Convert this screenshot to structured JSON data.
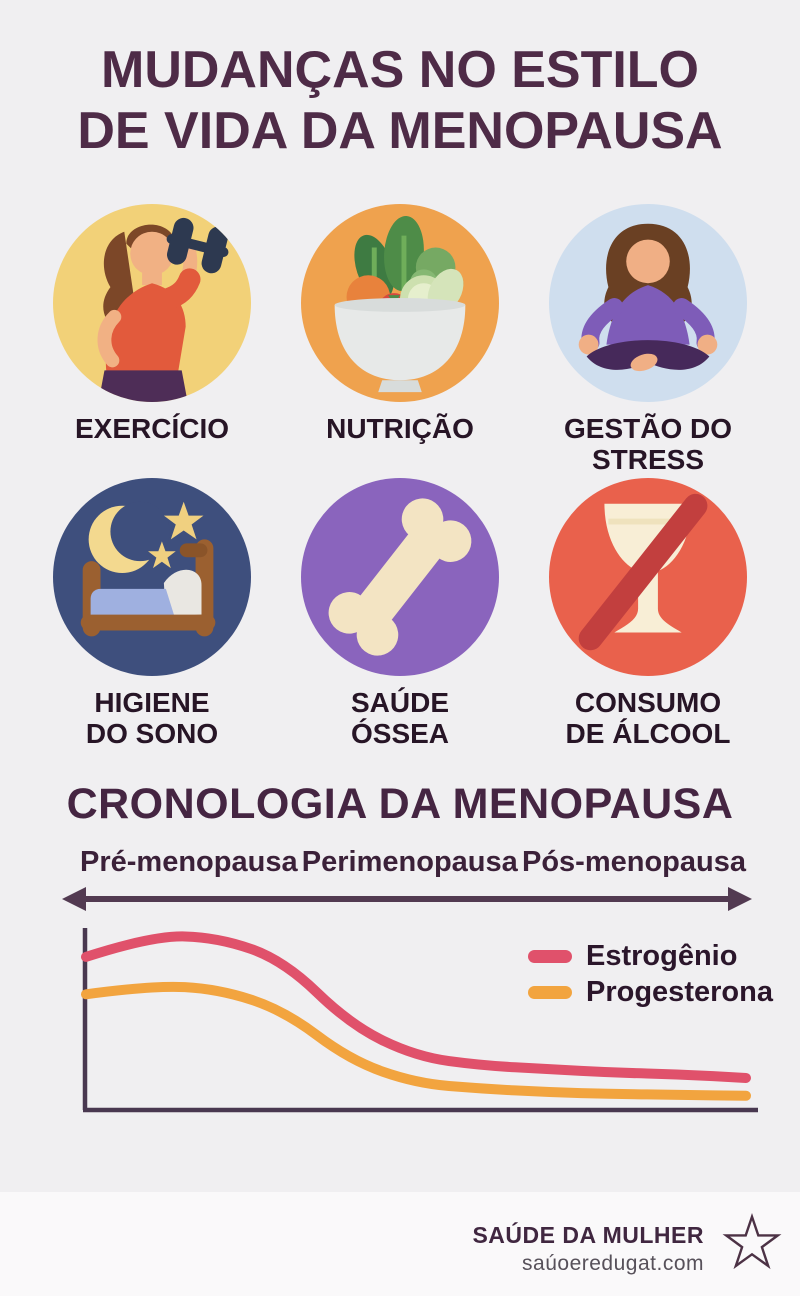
{
  "page": {
    "background": "#f0eff1",
    "footer_background": "#faf9fa"
  },
  "title": {
    "text": "MUDANÇAS NO ESTILO\nDE VIDA DA MENOPAUSA",
    "color": "#4e2b47"
  },
  "lifestyle_items": [
    {
      "label": "EXERCÍCIO",
      "icon": "exercise-dumbbell-icon",
      "circle_color": "#f2d178"
    },
    {
      "label": "NUTRIÇÃO",
      "icon": "salad-bowl-icon",
      "circle_color": "#efa24e"
    },
    {
      "label": "GESTÃO DO\nSTRESS",
      "icon": "meditation-icon",
      "circle_color": "#cfdeee"
    },
    {
      "label": "HIGIENE\nDO SONO",
      "icon": "sleep-bed-icon",
      "circle_color": "#3e4f7d"
    },
    {
      "label": "SAÚDE\nÓSSEA",
      "icon": "bone-icon",
      "circle_color": "#8a64bd"
    },
    {
      "label": "CONSUMO\nDE ÁLCOOL",
      "icon": "no-alcohol-icon",
      "circle_color": "#e9614c"
    }
  ],
  "timeline": {
    "heading": "CRONOLOGIA DA MENOPAUSA",
    "stages": [
      "Pré-menopausa",
      "Perimenopausa",
      "Pós-menopausa"
    ],
    "arrow_color": "#523a51"
  },
  "chart_data": {
    "type": "line",
    "title": "CRONOLOGIA DA MENOPAUSA",
    "x_stages": [
      "Pré-menopausa",
      "Perimenopausa",
      "Pós-menopausa"
    ],
    "x_percent": [
      0,
      10,
      20,
      30,
      40,
      50,
      60,
      70,
      80,
      90,
      100
    ],
    "series": [
      {
        "name": "Estrogênio",
        "color": "#e0516b",
        "values": [
          86,
          98,
          97,
          84,
          48,
          30,
          25,
          23,
          21,
          20,
          18
        ]
      },
      {
        "name": "Progesterona",
        "color": "#f2a43f",
        "values": [
          65,
          70,
          68,
          56,
          28,
          15,
          12,
          10,
          9,
          8.5,
          8
        ]
      }
    ],
    "ylim": [
      0,
      100
    ],
    "xlabel": "",
    "ylabel": "",
    "grid": false,
    "legend_position": "top-right",
    "axis_color": "#493850"
  },
  "footer": {
    "brand": "SAÚDE DA MULHER",
    "website": "saúoeredugat.com",
    "star_icon": "star-outline-icon",
    "star_color": "#4c3245"
  }
}
